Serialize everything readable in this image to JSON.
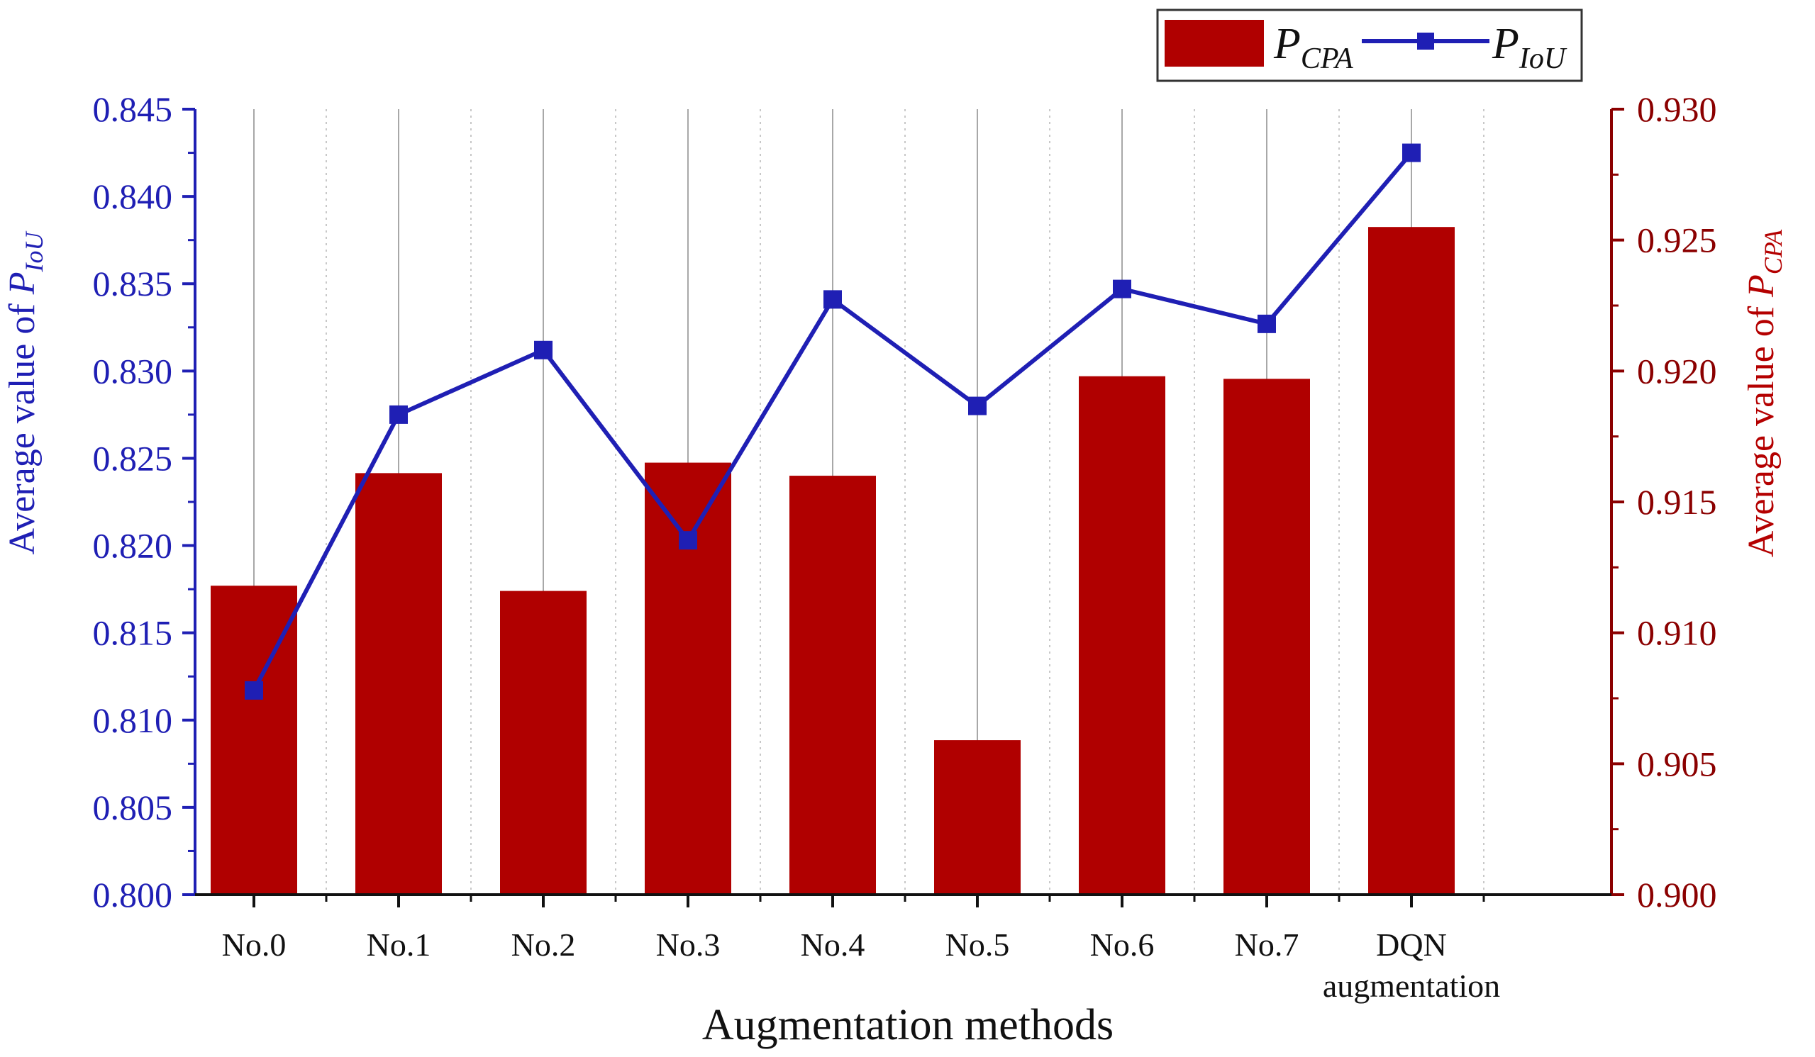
{
  "chart_data": {
    "type": "bar+line",
    "categories": [
      "No.0",
      "No.1",
      "No.2",
      "No.3",
      "No.4",
      "No.5",
      "No.6",
      "No.7",
      "DQN augmentation"
    ],
    "category_labels": [
      [
        "No.0"
      ],
      [
        "No.1"
      ],
      [
        "No.2"
      ],
      [
        "No.3"
      ],
      [
        "No.4"
      ],
      [
        "No.5"
      ],
      [
        "No.6"
      ],
      [
        "No.7"
      ],
      [
        "DQN",
        "augmentation"
      ]
    ],
    "series": [
      {
        "name": "P_CPA",
        "name_main": "P",
        "name_sub": "CPA",
        "type": "bar",
        "axis": "right",
        "color": "#b00000",
        "values": [
          0.9118,
          0.9161,
          0.9116,
          0.9165,
          0.916,
          0.9059,
          0.9198,
          0.9197,
          0.9255
        ]
      },
      {
        "name": "P_IoU",
        "name_main": "P",
        "name_sub": "IoU",
        "type": "line",
        "marker": "square",
        "axis": "left",
        "color": "#1f1fb4",
        "values": [
          0.8117,
          0.8275,
          0.8312,
          0.8203,
          0.8341,
          0.828,
          0.8347,
          0.8327,
          0.8425
        ]
      }
    ],
    "xlabel": "Augmentation methods",
    "ylabel_left": {
      "prefix": "Average value of ",
      "main": "P",
      "sub": "IoU"
    },
    "ylabel_right": {
      "prefix": "Average value of ",
      "main": "P",
      "sub": "CPA"
    },
    "ylim_left": [
      0.8,
      0.845
    ],
    "yticks_left": [
      "0.800",
      "0.805",
      "0.810",
      "0.815",
      "0.820",
      "0.825",
      "0.830",
      "0.835",
      "0.840",
      "0.845"
    ],
    "ylim_right": [
      0.9,
      0.93
    ],
    "yticks_right": [
      "0.900",
      "0.905",
      "0.910",
      "0.915",
      "0.920",
      "0.925",
      "0.930"
    ],
    "grid": "vertical",
    "legend_position": "top-right",
    "colors": {
      "left_axis": "#1f1fb4",
      "right_axis": "#8b0000",
      "bar": "#b00000",
      "line": "#1f1fb4"
    }
  }
}
